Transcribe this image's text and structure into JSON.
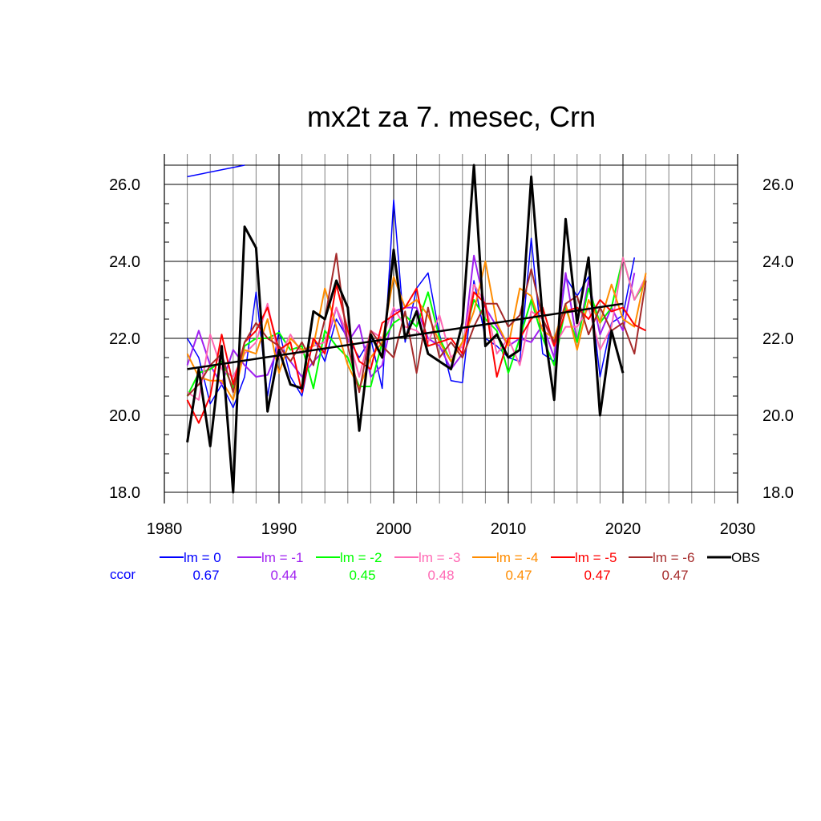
{
  "chart_data": {
    "type": "line",
    "title": "mx2t za 7. mesec, Crn",
    "xlabel": "",
    "ylabel": "",
    "xlim": [
      1980,
      2030
    ],
    "ylim": [
      18,
      26.5
    ],
    "x_ticks": [
      "1980",
      "1990",
      "2000",
      "2010",
      "2020",
      "2030"
    ],
    "y_ticks": [
      "18.0",
      "20.0",
      "22.0",
      "24.0",
      "26.0"
    ],
    "grid": true,
    "legend_position": "bottom",
    "ccor_label": "ccor",
    "series": [
      {
        "name": "lm = 0",
        "color": "#0000ff",
        "ccor": "0.67",
        "x": [
          1982,
          1983,
          1984,
          1985,
          1986,
          1987,
          1988,
          1989,
          1990,
          1991,
          1992,
          1993,
          1994,
          1995,
          1996,
          1997,
          1998,
          1999,
          2000,
          2001,
          2002,
          2003,
          2004,
          2005,
          2006,
          2007,
          2008,
          2009,
          2010,
          2011,
          2012,
          2013,
          2014,
          2015,
          2016,
          2017,
          2018,
          2019,
          2020,
          2021
        ],
        "values": [
          22.0,
          21.5,
          20.3,
          20.8,
          20.2,
          21.0,
          23.2,
          20.5,
          22.2,
          21.0,
          20.5,
          22.0,
          21.4,
          22.5,
          22.0,
          21.5,
          22.0,
          20.7,
          25.6,
          21.9,
          23.3,
          23.7,
          22.1,
          20.9,
          20.85,
          23.5,
          22.0,
          21.8,
          21.5,
          21.4,
          24.6,
          21.6,
          21.4,
          23.6,
          23.1,
          23.6,
          21.0,
          22.4,
          22.6,
          24.1
        ]
      },
      {
        "name": "lm = -1",
        "color": "#a020f0",
        "ccor": "0.44",
        "x": [
          1982,
          1983,
          1984,
          1985,
          1986,
          1987,
          1988,
          1989,
          1990,
          1991,
          1992,
          1993,
          1994,
          1995,
          1996,
          1997,
          1998,
          1999,
          2000,
          2001,
          2002,
          2003,
          2004,
          2005,
          2006,
          2007,
          2008,
          2009,
          2010,
          2011,
          2012,
          2013,
          2014,
          2015,
          2016,
          2017,
          2018,
          2019,
          2020,
          2021
        ],
        "values": [
          21.3,
          22.2,
          21.3,
          20.8,
          21.7,
          21.3,
          21.0,
          21.05,
          21.8,
          21.4,
          21.0,
          21.4,
          21.7,
          22.8,
          21.9,
          22.35,
          21.0,
          21.3,
          22.7,
          22.8,
          22.8,
          22.0,
          21.8,
          21.2,
          21.6,
          24.15,
          22.8,
          22.3,
          21.8,
          22.0,
          21.9,
          22.35,
          21.5,
          23.7,
          21.9,
          23.5,
          22.1,
          22.8,
          22.2,
          23.7
        ]
      },
      {
        "name": "lm = -2",
        "color": "#00ff00",
        "ccor": "0.45",
        "x": [
          1982,
          1983,
          1984,
          1985,
          1986,
          1987,
          1988,
          1989,
          1990,
          1991,
          1992,
          1993,
          1994,
          1995,
          1996,
          1997,
          1998,
          1999,
          2000,
          2001,
          2002,
          2003,
          2004,
          2005,
          2006,
          2007,
          2008,
          2009,
          2010,
          2011,
          2012,
          2013,
          2014,
          2015,
          2016,
          2017,
          2018,
          2019,
          2020,
          2021,
          2022
        ],
        "values": [
          20.5,
          21.1,
          21.2,
          21.4,
          20.7,
          21.8,
          22.0,
          22.0,
          22.15,
          21.7,
          21.8,
          20.7,
          22.2,
          21.8,
          21.5,
          20.75,
          20.75,
          21.9,
          22.4,
          22.6,
          22.3,
          23.2,
          22.0,
          21.4,
          21.9,
          23.0,
          22.5,
          22.2,
          21.1,
          22.0,
          23.0,
          22.0,
          21.3,
          22.8,
          21.9,
          23.3,
          22.4,
          22.8,
          24.1,
          23.0,
          23.5
        ]
      },
      {
        "name": "lm = -3",
        "color": "#ff69b4",
        "ccor": "0.48",
        "x": [
          1982,
          1983,
          1984,
          1985,
          1986,
          1987,
          1988,
          1989,
          1990,
          1991,
          1992,
          1993,
          1994,
          1995,
          1996,
          1997,
          1998,
          1999,
          2000,
          2001,
          2002,
          2003,
          2004,
          2005,
          2006,
          2007,
          2008,
          2009,
          2010,
          2011,
          2012,
          2013,
          2014,
          2015,
          2016,
          2017,
          2018,
          2019,
          2020,
          2021,
          2022
        ],
        "values": [
          20.6,
          20.4,
          22.1,
          21.2,
          21.0,
          21.6,
          21.9,
          22.9,
          21.5,
          22.1,
          21.6,
          21.8,
          21.9,
          22.8,
          22.1,
          21.0,
          22.2,
          22.0,
          22.8,
          22.3,
          22.2,
          21.9,
          22.6,
          21.5,
          21.8,
          23.4,
          22.9,
          21.6,
          22.0,
          21.3,
          22.7,
          22.5,
          21.8,
          22.3,
          22.3,
          22.8,
          21.7,
          22.3,
          24.1,
          23.0,
          23.6
        ]
      },
      {
        "name": "lm = -4",
        "color": "#ff8c00",
        "ccor": "0.47",
        "x": [
          1982,
          1983,
          1984,
          1985,
          1986,
          1987,
          1988,
          1989,
          1990,
          1991,
          1992,
          1993,
          1994,
          1995,
          1996,
          1997,
          1998,
          1999,
          2000,
          2001,
          2002,
          2003,
          2004,
          2005,
          2006,
          2007,
          2008,
          2009,
          2010,
          2011,
          2012,
          2013,
          2014,
          2015,
          2016,
          2017,
          2018,
          2019,
          2020,
          2021,
          2022
        ],
        "values": [
          21.6,
          21.0,
          20.9,
          20.9,
          20.4,
          21.7,
          21.6,
          22.5,
          21.1,
          22.0,
          21.7,
          21.8,
          23.3,
          22.3,
          21.3,
          20.7,
          21.5,
          21.9,
          23.6,
          22.8,
          23.0,
          22.6,
          21.9,
          21.4,
          21.9,
          22.7,
          24.0,
          22.4,
          21.8,
          23.3,
          23.1,
          22.2,
          22.0,
          22.9,
          21.7,
          23.0,
          22.4,
          23.4,
          22.5,
          22.3,
          23.7
        ]
      },
      {
        "name": "lm = -5",
        "color": "#ff0000",
        "ccor": "0.47",
        "x": [
          1982,
          1983,
          1984,
          1985,
          1986,
          1987,
          1988,
          1989,
          1990,
          1991,
          1992,
          1993,
          1994,
          1995,
          1996,
          1997,
          1998,
          1999,
          2000,
          2001,
          2002,
          2003,
          2004,
          2005,
          2006,
          2007,
          2008,
          2009,
          2010,
          2011,
          2012,
          2013,
          2014,
          2015,
          2016,
          2017,
          2018,
          2019,
          2020,
          2021,
          2022
        ],
        "values": [
          20.4,
          19.8,
          20.5,
          22.1,
          20.8,
          21.9,
          22.2,
          22.8,
          21.7,
          21.9,
          20.6,
          22.0,
          21.6,
          23.4,
          22.2,
          21.4,
          21.2,
          22.4,
          22.6,
          22.8,
          23.3,
          21.8,
          21.9,
          22.0,
          21.6,
          23.2,
          22.9,
          21.0,
          22.0,
          22.0,
          22.5,
          22.8,
          21.8,
          22.7,
          22.8,
          22.5,
          23.0,
          22.7,
          22.8,
          22.35,
          22.2
        ]
      },
      {
        "name": "lm = -6",
        "color": "#a52a2a",
        "ccor": "0.47",
        "x": [
          1982,
          1983,
          1984,
          1985,
          1986,
          1987,
          1988,
          1989,
          1990,
          1991,
          1992,
          1993,
          1994,
          1995,
          1996,
          1997,
          1998,
          1999,
          2000,
          2001,
          2002,
          2003,
          2004,
          2005,
          2006,
          2007,
          2008,
          2009,
          2010,
          2011,
          2012,
          2013,
          2014,
          2015,
          2016,
          2017,
          2018,
          2019,
          2020,
          2021,
          2022
        ],
        "values": [
          20.5,
          20.8,
          21.3,
          21.6,
          20.6,
          21.9,
          22.4,
          22.0,
          21.8,
          21.4,
          21.9,
          21.3,
          22.5,
          24.2,
          21.8,
          20.6,
          22.2,
          21.8,
          21.5,
          22.7,
          21.1,
          22.8,
          21.5,
          21.9,
          21.5,
          22.3,
          22.9,
          22.9,
          22.3,
          22.6,
          23.8,
          22.5,
          21.9,
          22.9,
          23.1,
          22.1,
          22.8,
          22.2,
          22.4,
          21.6,
          23.5
        ]
      },
      {
        "name": "OBS",
        "color": "#000000",
        "ccor": "",
        "x": [
          1982,
          1983,
          1984,
          1985,
          1986,
          1987,
          1988,
          1989,
          1990,
          1991,
          1992,
          1993,
          1994,
          1995,
          1996,
          1997,
          1998,
          1999,
          2000,
          2001,
          2002,
          2003,
          2004,
          2005,
          2006,
          2007,
          2008,
          2009,
          2010,
          2011,
          2012,
          2013,
          2014,
          2015,
          2016,
          2017,
          2018,
          2019,
          2020
        ],
        "values": [
          19.3,
          21.2,
          19.2,
          21.8,
          18.0,
          24.9,
          24.35,
          20.1,
          21.7,
          20.8,
          20.7,
          22.7,
          22.5,
          23.5,
          22.8,
          19.6,
          22.1,
          21.5,
          24.3,
          22.0,
          22.7,
          21.6,
          21.4,
          21.2,
          22.4,
          26.5,
          21.8,
          22.1,
          21.5,
          21.7,
          26.2,
          22.5,
          20.4,
          25.1,
          22.4,
          24.1,
          20.0,
          22.2,
          21.1
        ]
      }
    ],
    "trend": {
      "name": "OBS trend",
      "color": "#000000",
      "x": [
        1982,
        2020
      ],
      "values": [
        21.2,
        22.9
      ]
    },
    "stray_segment": {
      "color": "#0000ff",
      "x": [
        1982,
        1987
      ],
      "values": [
        26.2,
        26.5
      ]
    }
  }
}
